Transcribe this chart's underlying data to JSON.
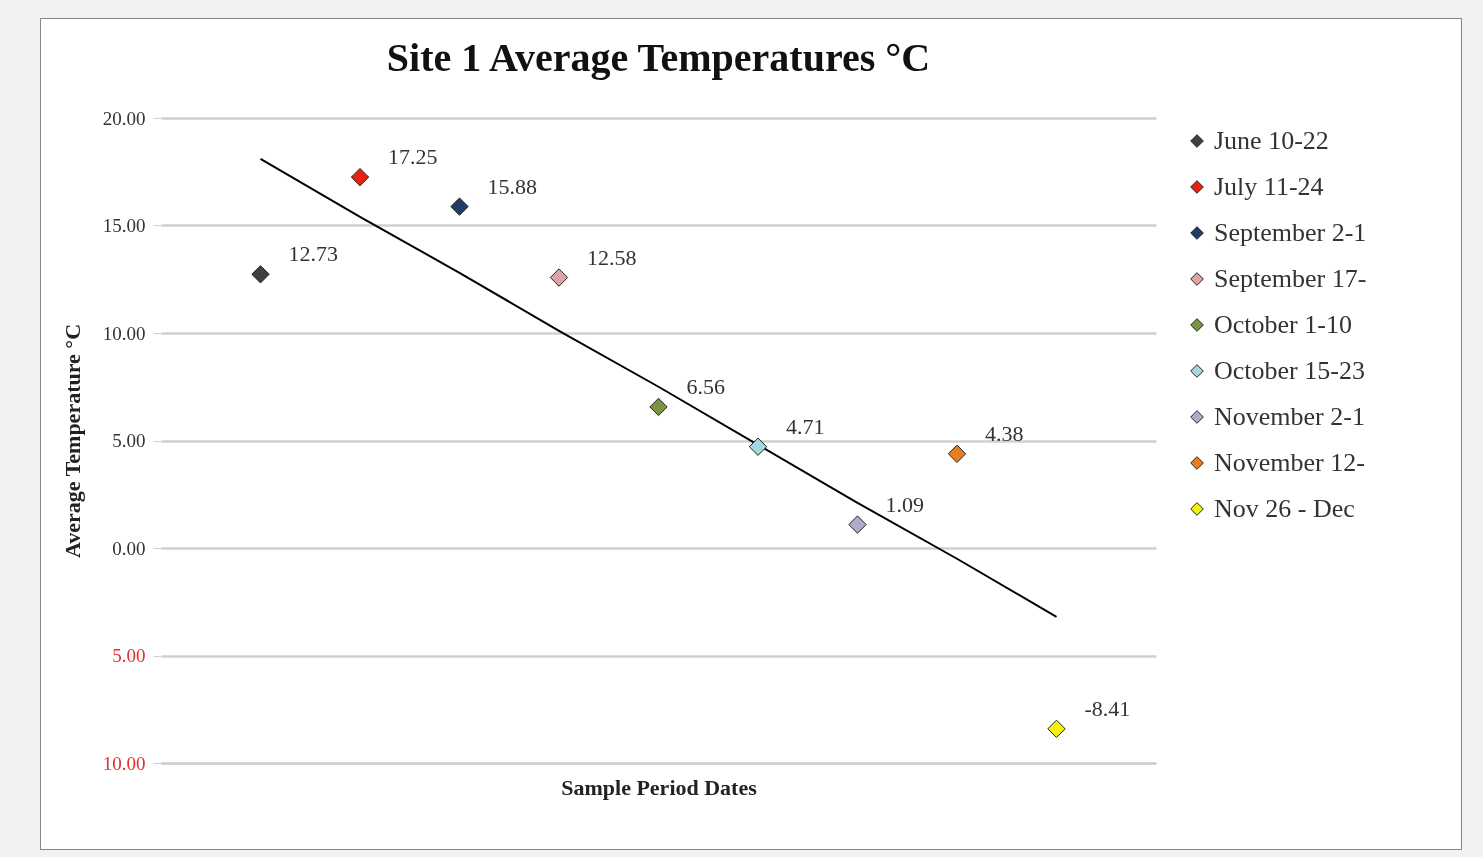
{
  "chart_data": {
    "type": "scatter",
    "title": "Site 1 Average Temperatures °C",
    "xlabel": "Sample Period Dates",
    "ylabel": "Average Temperature °C",
    "categories": [
      null,
      null,
      null,
      null,
      null,
      null,
      null,
      null,
      null
    ],
    "series": [
      {
        "name": "June 10-22",
        "color": "#404040",
        "values": [
          12.73,
          null,
          null,
          null,
          null,
          null,
          null,
          null,
          null
        ],
        "value_labels": [
          "12.73",
          null,
          null,
          null,
          null,
          null,
          null,
          null,
          null
        ]
      },
      {
        "name": "July 11-24",
        "color": "#e8220e",
        "values": [
          null,
          17.25,
          null,
          null,
          null,
          null,
          null,
          null,
          null
        ],
        "value_labels": [
          null,
          "17.25",
          null,
          null,
          null,
          null,
          null,
          null,
          null
        ]
      },
      {
        "name": "September 2-1",
        "color": "#1f3d66",
        "values": [
          null,
          null,
          15.88,
          null,
          null,
          null,
          null,
          null,
          null
        ],
        "value_labels": [
          null,
          null,
          "15.88",
          null,
          null,
          null,
          null,
          null,
          null
        ]
      },
      {
        "name": "September 17-",
        "color": "#e0a3a3",
        "values": [
          null,
          null,
          null,
          12.58,
          null,
          null,
          null,
          null,
          null
        ],
        "value_labels": [
          null,
          null,
          null,
          "12.58",
          null,
          null,
          null,
          null,
          null
        ]
      },
      {
        "name": "October 1-10",
        "color": "#7a9440",
        "values": [
          null,
          null,
          null,
          null,
          6.56,
          null,
          null,
          null,
          null
        ],
        "value_labels": [
          null,
          null,
          null,
          null,
          "6.56",
          null,
          null,
          null,
          null
        ]
      },
      {
        "name": "October 15-23",
        "color": "#a6d6e0",
        "values": [
          null,
          null,
          null,
          null,
          null,
          4.71,
          null,
          null,
          null
        ],
        "value_labels": [
          null,
          null,
          null,
          null,
          null,
          "4.71",
          null,
          null,
          null
        ]
      },
      {
        "name": "November 2-1",
        "color": "#b3a9cc",
        "values": [
          null,
          null,
          null,
          null,
          null,
          null,
          1.09,
          null,
          null
        ],
        "value_labels": [
          null,
          null,
          null,
          null,
          null,
          null,
          "1.09",
          null,
          null
        ]
      },
      {
        "name": "November 12-",
        "color": "#e67e22",
        "values": [
          null,
          null,
          null,
          null,
          null,
          null,
          null,
          4.38,
          null
        ],
        "value_labels": [
          null,
          null,
          null,
          null,
          null,
          null,
          null,
          "4.38",
          null
        ]
      },
      {
        "name": "Nov 26 - Dec",
        "color": "#f2f20a",
        "values": [
          null,
          null,
          null,
          null,
          null,
          null,
          null,
          null,
          -8.41
        ],
        "value_labels": [
          null,
          null,
          null,
          null,
          null,
          null,
          null,
          null,
          "-8.41"
        ]
      },
      {
        "type": "line",
        "color": "#000000",
        "line_style": "solid",
        "marker": "none",
        "values": [
          18.1,
          15.4,
          12.8,
          10.1,
          7.5,
          4.8,
          2.1,
          -0.5,
          -3.2
        ]
      }
    ],
    "ylim": [
      -10,
      20
    ],
    "yticks": [
      {
        "value": -10,
        "label": "10.00"
      },
      {
        "value": -5,
        "label": "5.00"
      },
      {
        "value": 0,
        "label": "0.00"
      },
      {
        "value": 5,
        "label": "5.00"
      },
      {
        "value": 10,
        "label": "10.00"
      },
      {
        "value": 15,
        "label": "15.00"
      },
      {
        "value": 20,
        "label": "20.00"
      }
    ],
    "grid": "y",
    "legend": "right",
    "marker": "diamond",
    "tick_labels": "y"
  }
}
